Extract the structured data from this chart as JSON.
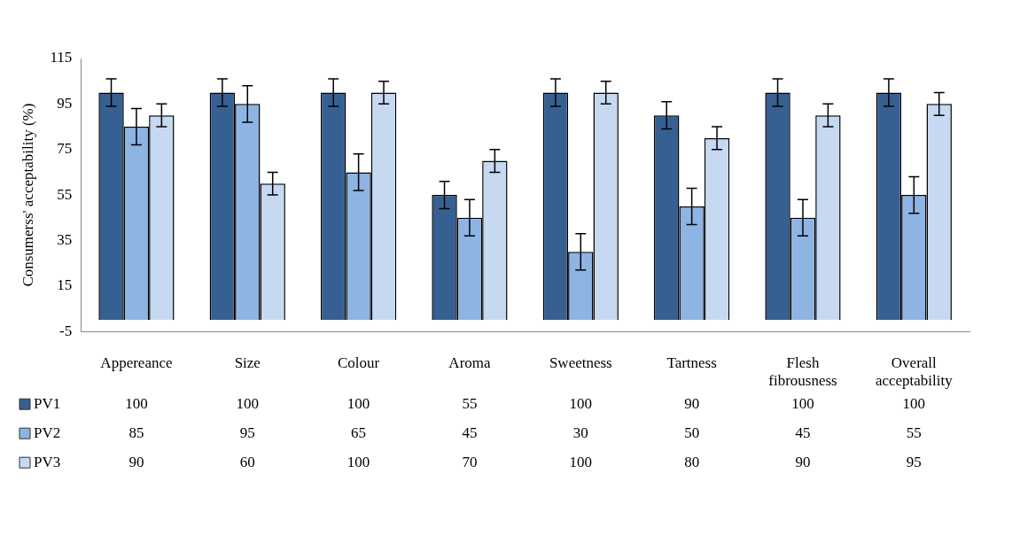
{
  "chart_data": {
    "type": "bar",
    "ylabel": "Consumerss' acceptability (%)",
    "categories": [
      "Appereance",
      "Size",
      "Colour",
      "Aroma",
      "Sweetness",
      "Tartness",
      "Flesh fibrousness",
      "Overall acceptability"
    ],
    "series": [
      {
        "name": "PV1",
        "color": "#376092",
        "values": [
          100,
          100,
          100,
          55,
          100,
          90,
          100,
          100
        ],
        "errors": [
          6,
          6,
          6,
          6,
          6,
          6,
          6,
          6
        ]
      },
      {
        "name": "PV2",
        "color": "#8eb4e3",
        "values": [
          85,
          95,
          65,
          45,
          30,
          50,
          45,
          55
        ],
        "errors": [
          8,
          8,
          8,
          8,
          8,
          8,
          8,
          8
        ]
      },
      {
        "name": "PV3",
        "color": "#c6d9f1",
        "values": [
          90,
          60,
          100,
          70,
          100,
          80,
          90,
          95
        ],
        "errors": [
          5,
          5,
          5,
          5,
          5,
          5,
          5,
          5
        ]
      }
    ],
    "ylim": [
      -5,
      115
    ],
    "yticks": [
      -5,
      15,
      35,
      55,
      75,
      95,
      115
    ],
    "grid": false,
    "legend": "bottom",
    "data_labels": true
  }
}
